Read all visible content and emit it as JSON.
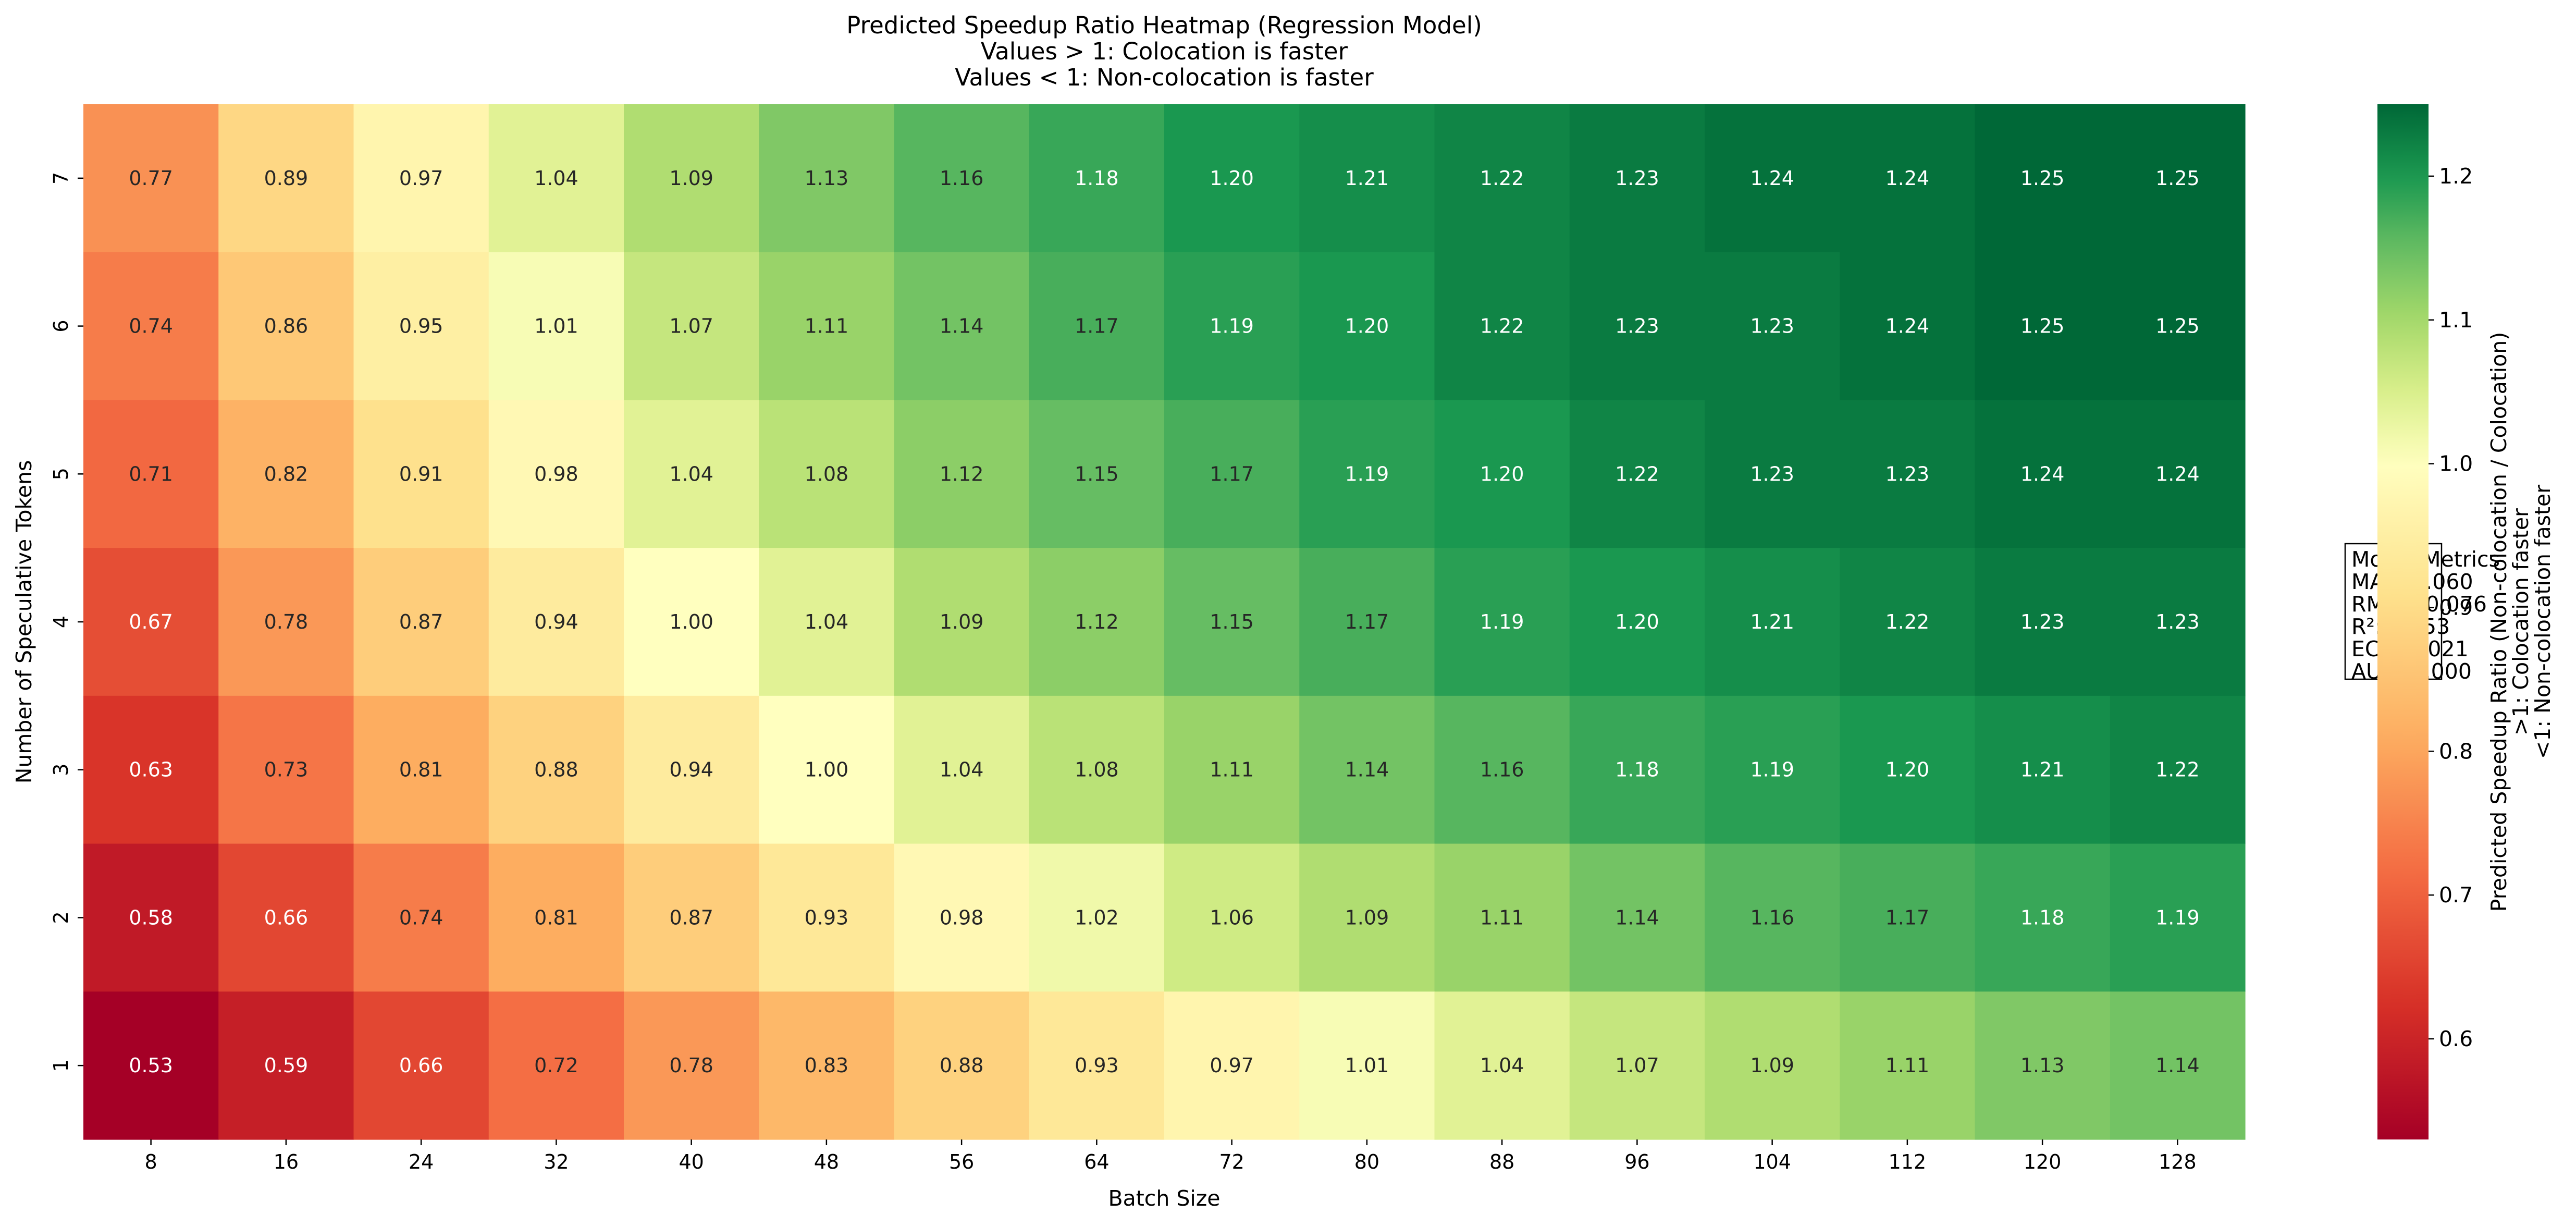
{
  "chart_data": {
    "type": "heatmap",
    "title": [
      "Predicted Speedup Ratio Heatmap (Regression Model)",
      "Values > 1: Colocation is faster",
      "Values < 1: Non-colocation is faster"
    ],
    "xlabel": "Batch Size",
    "ylabel": "Number of Speculative Tokens",
    "x_categories": [
      "8",
      "16",
      "24",
      "32",
      "40",
      "48",
      "56",
      "64",
      "72",
      "80",
      "88",
      "96",
      "104",
      "112",
      "120",
      "128"
    ],
    "y_categories": [
      "7",
      "6",
      "5",
      "4",
      "3",
      "2",
      "1"
    ],
    "values": [
      [
        0.77,
        0.89,
        0.97,
        1.04,
        1.09,
        1.13,
        1.16,
        1.18,
        1.2,
        1.21,
        1.22,
        1.23,
        1.24,
        1.24,
        1.25,
        1.25
      ],
      [
        0.74,
        0.86,
        0.95,
        1.01,
        1.07,
        1.11,
        1.14,
        1.17,
        1.19,
        1.2,
        1.22,
        1.23,
        1.23,
        1.24,
        1.25,
        1.25
      ],
      [
        0.71,
        0.82,
        0.91,
        0.98,
        1.04,
        1.08,
        1.12,
        1.15,
        1.17,
        1.19,
        1.2,
        1.22,
        1.23,
        1.23,
        1.24,
        1.24
      ],
      [
        0.67,
        0.78,
        0.87,
        0.94,
        1.0,
        1.04,
        1.09,
        1.12,
        1.15,
        1.17,
        1.19,
        1.2,
        1.21,
        1.22,
        1.23,
        1.23
      ],
      [
        0.63,
        0.73,
        0.81,
        0.88,
        0.94,
        1.0,
        1.04,
        1.08,
        1.11,
        1.14,
        1.16,
        1.18,
        1.19,
        1.2,
        1.21,
        1.22
      ],
      [
        0.58,
        0.66,
        0.74,
        0.81,
        0.87,
        0.93,
        0.98,
        1.02,
        1.06,
        1.09,
        1.11,
        1.14,
        1.16,
        1.17,
        1.18,
        1.19
      ],
      [
        0.53,
        0.59,
        0.66,
        0.72,
        0.78,
        0.83,
        0.88,
        0.93,
        0.97,
        1.01,
        1.04,
        1.07,
        1.09,
        1.11,
        1.13,
        1.14
      ]
    ],
    "value_format": "2 decimals",
    "colormap": "RdYlGn",
    "colormap_stops": [
      "#a50026",
      "#d73027",
      "#f46d43",
      "#fdae61",
      "#fee08b",
      "#ffffbf",
      "#d9ef8b",
      "#a6d96a",
      "#66bd63",
      "#1a9850",
      "#006837"
    ],
    "vmin": 0.53,
    "vmax": 1.25,
    "vcenter": 1.0,
    "colorbar": {
      "ticks": [
        "0.6",
        "0.7",
        "0.8",
        "0.9",
        "1.0",
        "1.1",
        "1.2"
      ],
      "label": [
        "Predicted Speedup Ratio (Non-colocation / Colocation)",
        ">1: Colocation faster",
        "<1: Non-colocation faster"
      ],
      "placement": "right"
    },
    "metrics_box": {
      "lines": [
        "Model Metrics",
        "MAE: 0.060",
        "RMSE: 0.076",
        "R²: 0.953",
        "ECE: 0.021",
        "AUC: 1.000"
      ],
      "placement": "far-right, vertically centered"
    }
  }
}
